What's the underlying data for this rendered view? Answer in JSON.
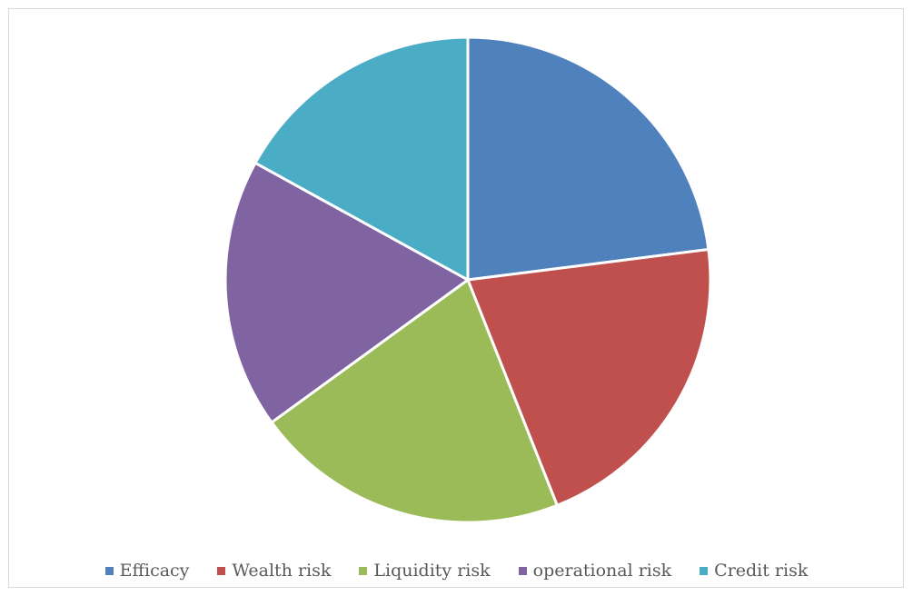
{
  "chart_data": {
    "type": "pie",
    "title": "",
    "slices": [
      {
        "label": "Efficacy",
        "value": 23,
        "color": "#4f81bd"
      },
      {
        "label": "Wealth risk",
        "value": 21,
        "color": "#c0504d"
      },
      {
        "label": "Liquidity risk",
        "value": 21,
        "color": "#9bbb59"
      },
      {
        "label": "operational risk",
        "value": 18,
        "color": "#8064a2"
      },
      {
        "label": "Credit risk",
        "value": 17,
        "color": "#4bacc6"
      }
    ],
    "legend": {
      "position": "bottom"
    }
  }
}
